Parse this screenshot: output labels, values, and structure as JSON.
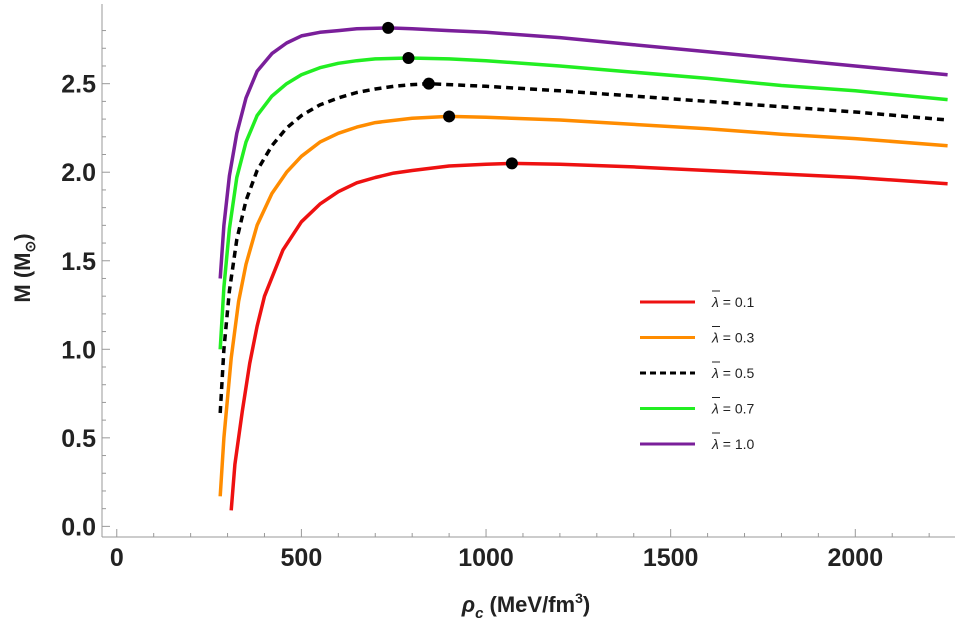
{
  "chart_data": {
    "type": "line",
    "title": "",
    "xlabel": "ρc (MeV/fm³)",
    "xlabel_parts": {
      "symbol": "ρ",
      "subscript": "c",
      "unit_pre": " (MeV/fm",
      "unit_sup": "3",
      "unit_post": ")"
    },
    "ylabel": "M (M☉)",
    "ylabel_parts": {
      "main": "M (M",
      "subscript": "⊙",
      "post": ")"
    },
    "xlim": [
      -40,
      2270
    ],
    "ylim": [
      -0.06,
      2.95
    ],
    "xticks": [
      0,
      500,
      1000,
      1500,
      2000
    ],
    "xtick_labels": [
      "0",
      "500",
      "1000",
      "1500",
      "2000"
    ],
    "yticks": [
      0.0,
      0.5,
      1.0,
      1.5,
      2.0,
      2.5
    ],
    "ytick_labels": [
      "0.0",
      "0.5",
      "1.0",
      "1.5",
      "2.0",
      "2.5"
    ],
    "legend_position": "center-right",
    "series": [
      {
        "name": "λ̄ = 0.1",
        "lambda_label": "= 0.1",
        "color": "#ee1111",
        "dash": false,
        "x": [
          310,
          320,
          340,
          360,
          380,
          400,
          450,
          500,
          550,
          600,
          650,
          700,
          750,
          800,
          900,
          1000,
          1070,
          1200,
          1400,
          1600,
          1800,
          2000,
          2250
        ],
        "y": [
          0.09,
          0.35,
          0.65,
          0.92,
          1.13,
          1.3,
          1.56,
          1.72,
          1.82,
          1.89,
          1.94,
          1.97,
          1.995,
          2.01,
          2.035,
          2.045,
          2.05,
          2.045,
          2.03,
          2.01,
          1.99,
          1.97,
          1.935
        ],
        "max_point": {
          "x": 1070,
          "y": 2.05
        }
      },
      {
        "name": "λ̄ = 0.3",
        "lambda_label": "= 0.3",
        "color": "#ff8c00",
        "dash": false,
        "x": [
          280,
          290,
          310,
          330,
          350,
          380,
          420,
          460,
          500,
          550,
          600,
          650,
          700,
          800,
          900,
          1000,
          1200,
          1400,
          1600,
          1800,
          2000,
          2250
        ],
        "y": [
          0.17,
          0.5,
          0.95,
          1.27,
          1.48,
          1.7,
          1.88,
          2.0,
          2.09,
          2.17,
          2.22,
          2.255,
          2.28,
          2.305,
          2.315,
          2.31,
          2.295,
          2.27,
          2.245,
          2.215,
          2.19,
          2.15
        ],
        "max_point": {
          "x": 900,
          "y": 2.315
        }
      },
      {
        "name": "λ̄= 0.5",
        "lambda_label": "= 0.5",
        "color": "#000000",
        "dash": true,
        "x": [
          280,
          290,
          305,
          325,
          350,
          380,
          420,
          460,
          500,
          550,
          600,
          650,
          700,
          750,
          800,
          845,
          900,
          1000,
          1200,
          1400,
          1600,
          1800,
          2000,
          2250
        ],
        "y": [
          0.64,
          1.0,
          1.33,
          1.62,
          1.84,
          2.01,
          2.15,
          2.25,
          2.32,
          2.38,
          2.42,
          2.45,
          2.47,
          2.485,
          2.495,
          2.5,
          2.495,
          2.485,
          2.46,
          2.43,
          2.4,
          2.37,
          2.34,
          2.295
        ],
        "max_point": {
          "x": 845,
          "y": 2.5
        }
      },
      {
        "name": "λ̄ = 0.7",
        "lambda_label": "= 0.7",
        "color": "#22ee22",
        "dash": false,
        "x": [
          280,
          290,
          305,
          325,
          350,
          380,
          420,
          460,
          500,
          550,
          600,
          650,
          700,
          790,
          900,
          1000,
          1200,
          1400,
          1600,
          1800,
          2000,
          2250
        ],
        "y": [
          1.0,
          1.35,
          1.68,
          1.97,
          2.17,
          2.32,
          2.43,
          2.5,
          2.55,
          2.59,
          2.615,
          2.63,
          2.64,
          2.645,
          2.64,
          2.63,
          2.6,
          2.565,
          2.53,
          2.49,
          2.46,
          2.41
        ],
        "max_point": {
          "x": 790,
          "y": 2.645
        }
      },
      {
        "name": "λ̄ = 1.0",
        "lambda_label": "= 1.0",
        "color": "#7a1f9a",
        "dash": false,
        "x": [
          280,
          290,
          305,
          325,
          350,
          380,
          420,
          460,
          500,
          550,
          600,
          650,
          735,
          800,
          900,
          1000,
          1200,
          1400,
          1600,
          1800,
          2000,
          2250
        ],
        "y": [
          1.4,
          1.7,
          1.98,
          2.22,
          2.42,
          2.57,
          2.67,
          2.73,
          2.77,
          2.79,
          2.8,
          2.81,
          2.815,
          2.81,
          2.8,
          2.79,
          2.76,
          2.72,
          2.68,
          2.64,
          2.6,
          2.55
        ],
        "max_point": {
          "x": 735,
          "y": 2.815
        }
      }
    ]
  }
}
